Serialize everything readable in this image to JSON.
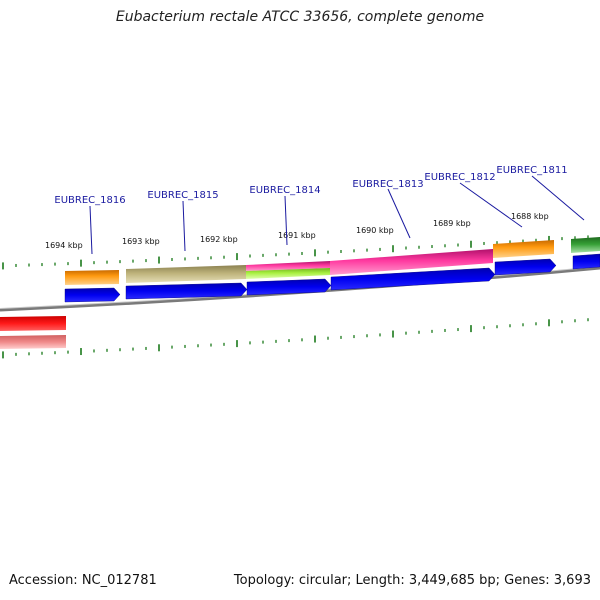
{
  "title": "Eubacterium rectale ATCC 33656, complete genome",
  "footer": {
    "accession": "Accession: NC_012781",
    "summary": "Topology: circular; Length: 3,449,685 bp; Genes: 3,693"
  },
  "scale_labels": [
    "1694 kbp",
    "1693 kbp",
    "1692 kbp",
    "1691 kbp",
    "1690 kbp",
    "1689 kbp",
    "1688 kbp"
  ],
  "gene_labels": [
    "EUBREC_1816",
    "EUBREC_1815",
    "EUBREC_1814",
    "EUBREC_1813",
    "EUBREC_1812",
    "EUBREC_1811"
  ],
  "colors": {
    "gene_arrow": "#0000ee",
    "tick": "#1a7a1a",
    "backbone": "#888888",
    "label": "#1a1aa0",
    "cog_orange": "#f08c00",
    "cog_khaki": "#b5aa6e",
    "cog_magenta": "#e0208a",
    "cog_lime": "#9de03a",
    "cog_green": "#2e8b2e",
    "cog_red": "#ee0000"
  }
}
